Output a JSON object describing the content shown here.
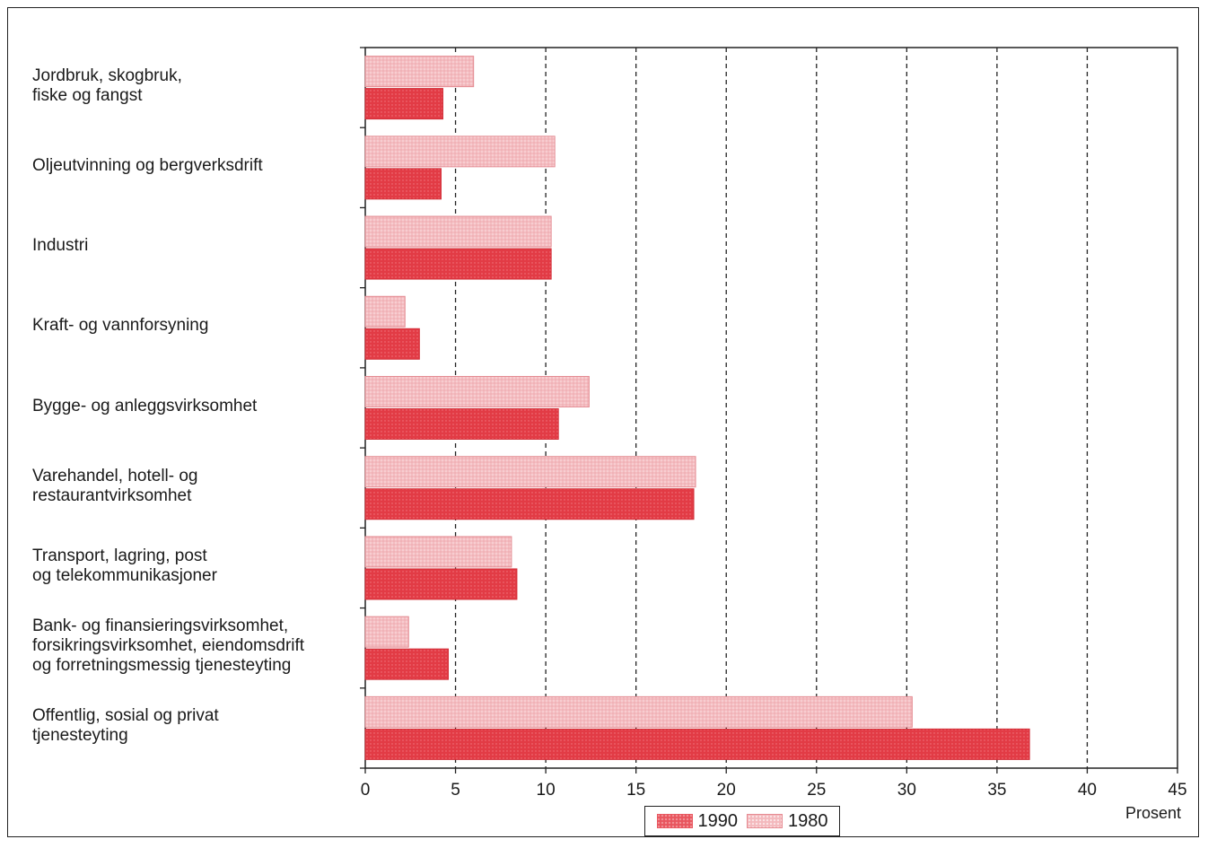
{
  "chart_data": {
    "type": "bar",
    "orientation": "horizontal",
    "categories": [
      "Jordbruk, skogbruk,\nfiske og fangst",
      "Oljeutvinning og bergverksdrift",
      "Industri",
      "Kraft- og vannforsyning",
      "Bygge- og anleggsvirksomhet",
      "Varehandel, hotell- og\nrestaurantvirksomhet",
      "Transport, lagring, post\nog telekommunikasjoner",
      "Bank- og finansieringsvirksomhet,\nforsikringsvirksomhet, eiendomsdrift\nog forretningsmessig tjenesteyting",
      "Offentlig, sosial og privat\ntjenesteyting"
    ],
    "series": [
      {
        "name": "1980",
        "values": [
          6.0,
          10.5,
          10.3,
          2.2,
          12.4,
          18.3,
          8.1,
          2.4,
          30.3
        ]
      },
      {
        "name": "1990",
        "values": [
          4.3,
          4.2,
          10.3,
          3.0,
          10.7,
          18.2,
          8.4,
          4.6,
          36.8
        ]
      }
    ],
    "xlabel": "Prosent",
    "xlim": [
      0,
      45
    ],
    "xticks": [
      0,
      5,
      10,
      15,
      20,
      25,
      30,
      35,
      40,
      45
    ],
    "grid": "vertical-dashed",
    "legend": {
      "placement": "bottom-center",
      "entries": [
        "1990",
        "1980"
      ]
    },
    "colors": {
      "1990": "#e23b45",
      "1980": "#f3b9bd"
    }
  }
}
